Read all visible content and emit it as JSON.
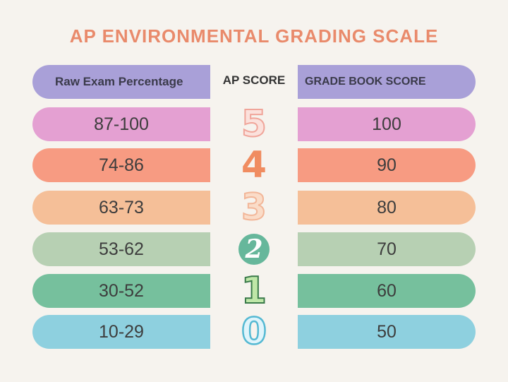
{
  "title": "AP ENVIRONMENTAL GRADING SCALE",
  "headers": {
    "raw": "Raw Exam Percentage",
    "ap": "AP SCORE",
    "grade": "GRADE BOOK SCORE",
    "header_color": "#a9a0d8"
  },
  "rows": [
    {
      "raw": "87-100",
      "ap": "5",
      "grade": "100",
      "color": "#e4a0d2"
    },
    {
      "raw": "74-86",
      "ap": "4",
      "grade": "90",
      "color": "#f79b82"
    },
    {
      "raw": "63-73",
      "ap": "3",
      "grade": "80",
      "color": "#f5bf98"
    },
    {
      "raw": "53-62",
      "ap": "2",
      "grade": "70",
      "color": "#b7d0b3"
    },
    {
      "raw": "30-52",
      "ap": "1",
      "grade": "60",
      "color": "#76c09d"
    },
    {
      "raw": "10-29",
      "ap": "0",
      "grade": "50",
      "color": "#8ed0df"
    }
  ]
}
